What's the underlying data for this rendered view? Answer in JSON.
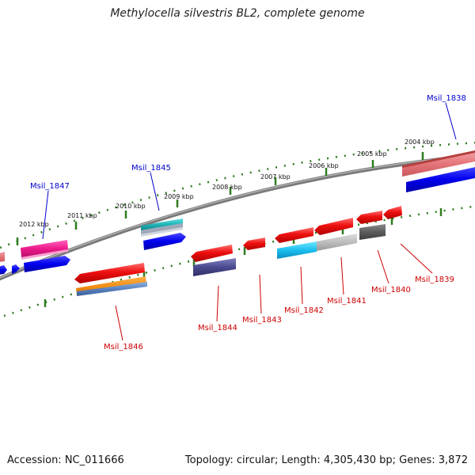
{
  "title": "Methylocella silvestris BL2, complete genome",
  "footer": {
    "accession": "Accession: NC_011666",
    "summary": "Topology: circular; Length: 4,305,430 bp; Genes: 3,872"
  },
  "colors": {
    "forward_label": "#0000cc",
    "reverse_label": "#cc0000",
    "tick": "#2e7d1e",
    "backbone": "#808080"
  },
  "kbp_labels": [
    "2012 kbp",
    "2011 kbp",
    "2010 kbp",
    "2009 kbp",
    "2008 kbp",
    "2007 kbp",
    "2006 kbp",
    "2005 kbp",
    "2004 kbp"
  ],
  "gene_labels": {
    "forward": [
      "Msil_1847",
      "Msil_1845",
      "Msil_1838"
    ],
    "reverse": [
      "Msil_1846",
      "Msil_1844",
      "Msil_1843",
      "Msil_1842",
      "Msil_1841",
      "Msil_1840",
      "Msil_1839"
    ]
  }
}
